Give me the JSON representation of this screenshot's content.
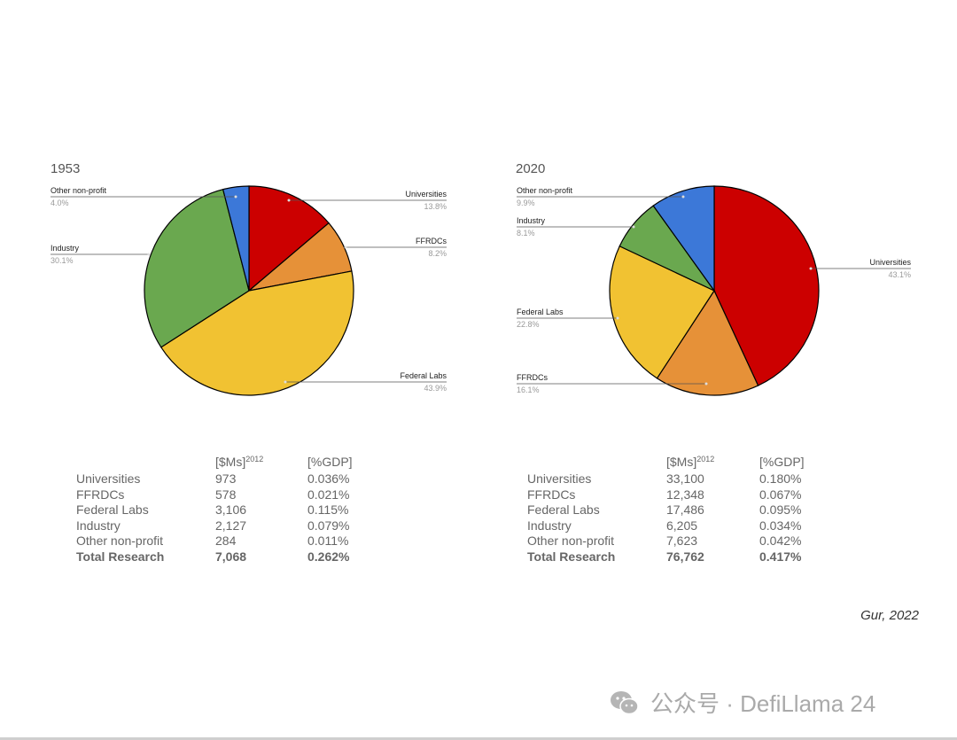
{
  "chart_data": [
    {
      "type": "pie",
      "title": "1953",
      "slices": [
        {
          "label": "Universities",
          "value": 13.8,
          "pct_text": "13.8%",
          "color": "#CC0000"
        },
        {
          "label": "FFRDCs",
          "value": 8.2,
          "pct_text": "8.2%",
          "color": "#E69138"
        },
        {
          "label": "Federal Labs",
          "value": 43.9,
          "pct_text": "43.9%",
          "color": "#F1C232"
        },
        {
          "label": "Industry",
          "value": 30.1,
          "pct_text": "30.1%",
          "color": "#6AA84F"
        },
        {
          "label": "Other non-profit",
          "value": 4.0,
          "pct_text": "4.0%",
          "color": "#3C78D8"
        }
      ]
    },
    {
      "type": "pie",
      "title": "2020",
      "slices": [
        {
          "label": "Universities",
          "value": 43.1,
          "pct_text": "43.1%",
          "color": "#CC0000"
        },
        {
          "label": "FFRDCs",
          "value": 16.1,
          "pct_text": "16.1%",
          "color": "#E69138"
        },
        {
          "label": "Federal Labs",
          "value": 22.8,
          "pct_text": "22.8%",
          "color": "#F1C232"
        },
        {
          "label": "Industry",
          "value": 8.1,
          "pct_text": "8.1%",
          "color": "#6AA84F"
        },
        {
          "label": "Other non-profit",
          "value": 9.9,
          "pct_text": "9.9%",
          "color": "#3C78D8"
        }
      ]
    }
  ],
  "tables": {
    "t1953": {
      "header": {
        "usd_main": "[$Ms]",
        "usd_sup": "2012",
        "gdp": "[%GDP]"
      },
      "rows": [
        {
          "label": "Universities",
          "usd": "973",
          "gdp": "0.036%"
        },
        {
          "label": "FFRDCs",
          "usd": "578",
          "gdp": "0.021%"
        },
        {
          "label": "Federal Labs",
          "usd": "3,106",
          "gdp": "0.115%"
        },
        {
          "label": "Industry",
          "usd": "2,127",
          "gdp": "0.079%"
        },
        {
          "label": "Other non-profit",
          "usd": "284",
          "gdp": "0.011%"
        }
      ],
      "total": {
        "label": "Total Research",
        "usd": "7,068",
        "gdp": "0.262%"
      }
    },
    "t2020": {
      "header": {
        "usd_main": "[$Ms]",
        "usd_sup": "2012",
        "gdp": "[%GDP]"
      },
      "rows": [
        {
          "label": "Universities",
          "usd": "33,100",
          "gdp": "0.180%"
        },
        {
          "label": "FFRDCs",
          "usd": "12,348",
          "gdp": "0.067%"
        },
        {
          "label": "Federal Labs",
          "usd": "17,486",
          "gdp": "0.095%"
        },
        {
          "label": "Industry",
          "usd": "6,205",
          "gdp": "0.034%"
        },
        {
          "label": "Other non-profit",
          "usd": "7,623",
          "gdp": "0.042%"
        }
      ],
      "total": {
        "label": "Total Research",
        "usd": "76,762",
        "gdp": "0.417%"
      }
    }
  },
  "citation": "Gur, 2022",
  "watermark": {
    "text": "公众号 · DefiLlama 24",
    "icon": "wechat-icon"
  }
}
